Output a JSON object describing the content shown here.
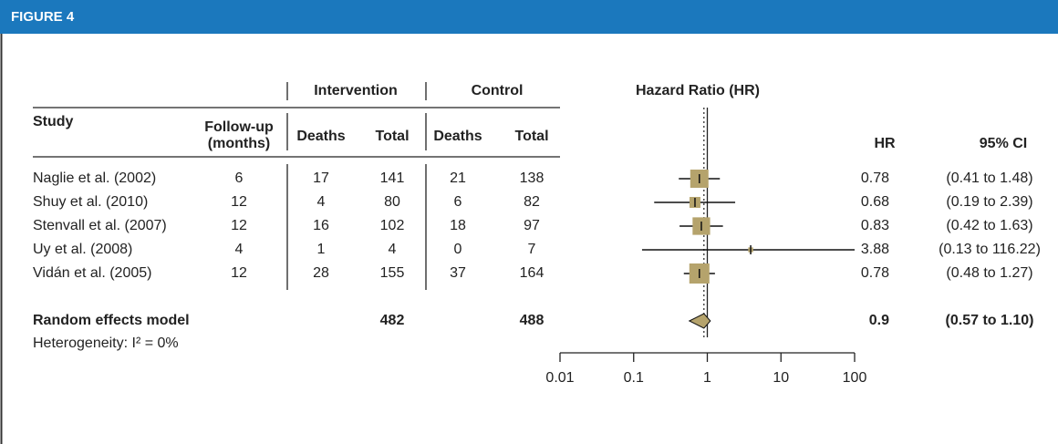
{
  "header": {
    "title": "FIGURE 4"
  },
  "table": {
    "group_headers": [
      "Intervention",
      "Control"
    ],
    "columns": [
      "Study",
      "Follow-up",
      "(months)",
      "Deaths",
      "Total",
      "Deaths",
      "Total"
    ],
    "rows": [
      [
        "Naglie et al. (2002)",
        6,
        17,
        141,
        21,
        138
      ],
      [
        "Shuy et al. (2010)",
        12,
        4,
        80,
        6,
        82
      ],
      [
        "Stenvall et al. (2007)",
        12,
        16,
        102,
        18,
        97
      ],
      [
        "Uy et al. (2008)",
        4,
        1,
        4,
        0,
        7
      ],
      [
        "Vidán et al. (2005)",
        12,
        28,
        155,
        37,
        164
      ]
    ],
    "summary": [
      "Random effects model",
      482,
      488
    ],
    "heterogeneity": "Heterogeneity: I² = 0%"
  },
  "chart_data": {
    "type": "forest",
    "title": "Hazard Ratio (HR)",
    "hr_header": "HR",
    "ci_header": "95% CI",
    "log_x": true,
    "xlim": [
      0.01,
      100
    ],
    "xticks": [
      0.01,
      0.1,
      1,
      10,
      100
    ],
    "values": [
      0.78,
      0.68,
      0.83,
      3.88,
      0.78
    ],
    "lower": [
      0.41,
      0.19,
      0.42,
      0.13,
      0.48
    ],
    "upper": [
      1.48,
      2.39,
      1.63,
      116.22,
      1.27
    ],
    "ci_labels": [
      "(0.41 to 1.48)",
      "(0.19 to 2.39)",
      "(0.42 to 1.63)",
      "(0.13 to 116.22)",
      "(0.48 to 1.27)"
    ],
    "weights": [
      28,
      10,
      26,
      2,
      34
    ],
    "color": "#b5a36c",
    "summary": {
      "value": 0.9,
      "lower": 0.57,
      "upper": 1.1,
      "ci_label": "(0.57 to 1.10)"
    }
  }
}
